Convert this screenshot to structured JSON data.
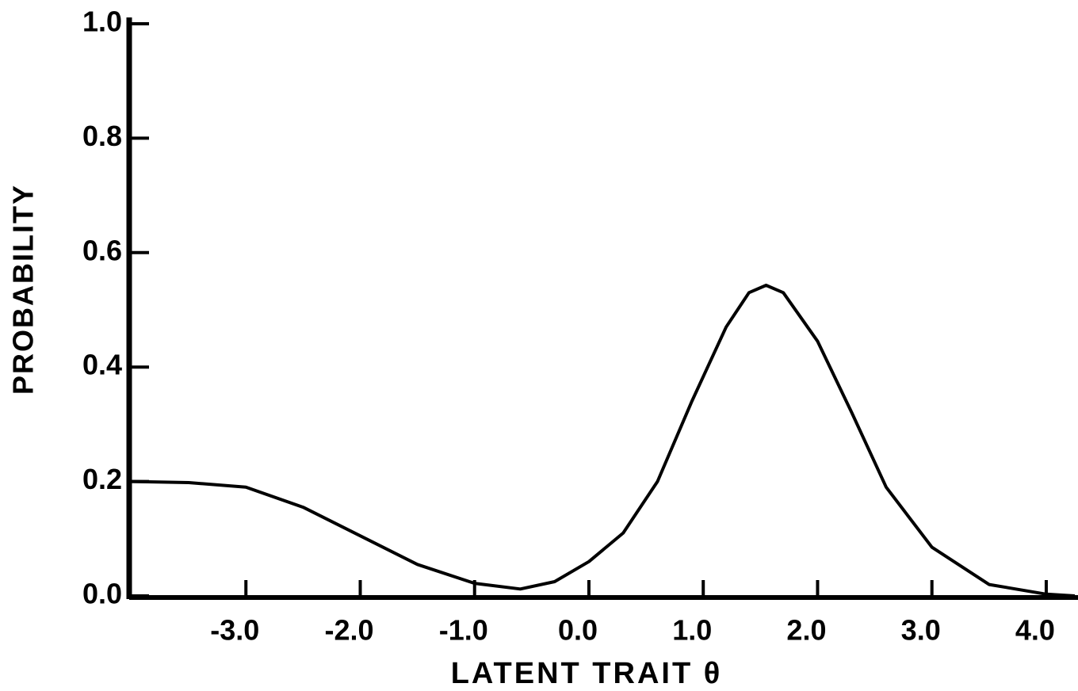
{
  "chart_data": {
    "type": "line",
    "x_label": "LATENT TRAIT θ",
    "y_label": "PROBABILITY",
    "x": [
      -4,
      -3.5,
      -3,
      -2.5,
      -2,
      -1.5,
      -1,
      -0.6,
      -0.3,
      0,
      0.3,
      0.6,
      0.9,
      1.2,
      1.4,
      1.55,
      1.7,
      2.0,
      2.3,
      2.6,
      3.0,
      3.5,
      4.0,
      4.25
    ],
    "values": [
      0.2,
      0.198,
      0.19,
      0.155,
      0.105,
      0.055,
      0.022,
      0.012,
      0.025,
      0.06,
      0.11,
      0.2,
      0.34,
      0.47,
      0.53,
      0.543,
      0.53,
      0.445,
      0.32,
      0.19,
      0.085,
      0.02,
      0.003,
      0.0
    ],
    "color": "#000000",
    "xlim": [
      -4,
      4.25
    ],
    "ylim": [
      0,
      1
    ],
    "xticks": [
      {
        "value": -3,
        "label": "-3.0"
      },
      {
        "value": -2,
        "label": "-2.0"
      },
      {
        "value": -1,
        "label": "-1.0"
      },
      {
        "value": 0,
        "label": "0.0"
      },
      {
        "value": 1,
        "label": "1.0"
      },
      {
        "value": 2,
        "label": "2.0"
      },
      {
        "value": 3,
        "label": "3.0"
      },
      {
        "value": 4,
        "label": "4.0"
      }
    ],
    "yticks": [
      {
        "value": 0,
        "label": "0.0"
      },
      0.2,
      0.4,
      0.6,
      0.8,
      {
        "value": 1,
        "label": "1.0"
      }
    ],
    "grid": false
  }
}
